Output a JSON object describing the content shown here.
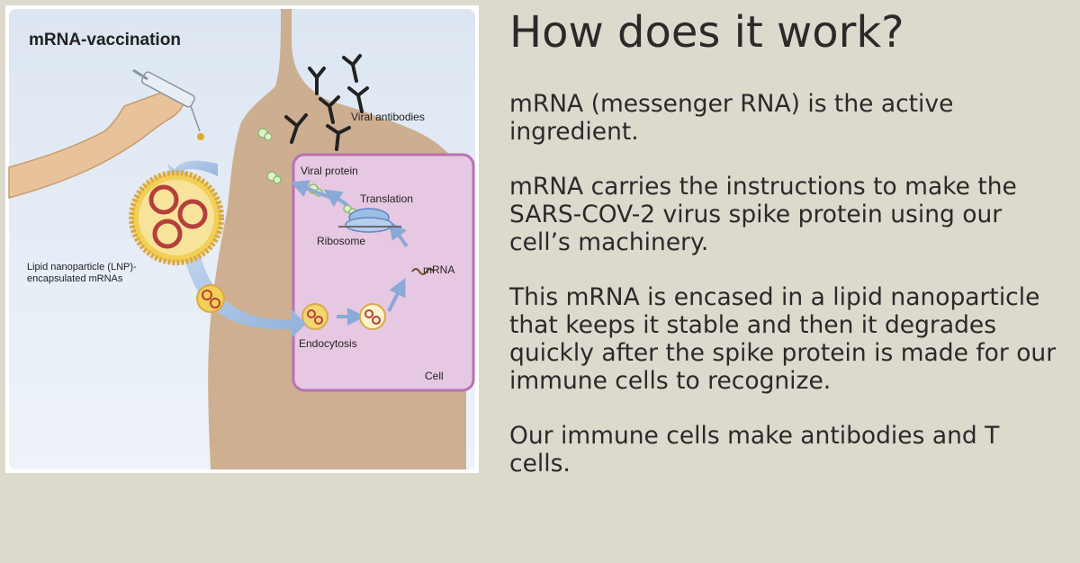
{
  "slide": {
    "title": "How does it work?",
    "paragraphs": [
      "mRNA (messenger RNA) is the active ingredient.",
      "mRNA carries the instructions to make the SARS-COV-2 virus spike protein using our cell’s machinery.",
      "This mRNA is encased in a lipid nanoparticle that keeps it stable and then it degrades quickly after the spike protein is made for our immune cells to recognize.",
      "Our immune cells make antibodies and T cells."
    ]
  },
  "diagram": {
    "title": "mRNA-vaccination",
    "labels": {
      "viral_antibodies": "Viral antibodies",
      "viral_protein": "Viral protein",
      "translation": "Translation",
      "ribosome": "Ribosome",
      "mrna": "mRNA",
      "lnp_line1": "Lipid nanoparticle (LNP)-",
      "lnp_line2": "encapsulated mRNAs",
      "endocytosis": "Endocytosis",
      "cell": "Cell"
    },
    "colors": {
      "background_top": "#dfe8f3",
      "background_bottom": "#eef3f8",
      "body_skin": "#c9a37f",
      "cell_fill": "#e7c8e2",
      "cell_border": "#b872b2",
      "arrow_blue": "#93b1d9",
      "lnp_yellow": "#f2cf55",
      "mrna_red": "#b4403c",
      "hand_skin": "#e8c29a"
    }
  }
}
